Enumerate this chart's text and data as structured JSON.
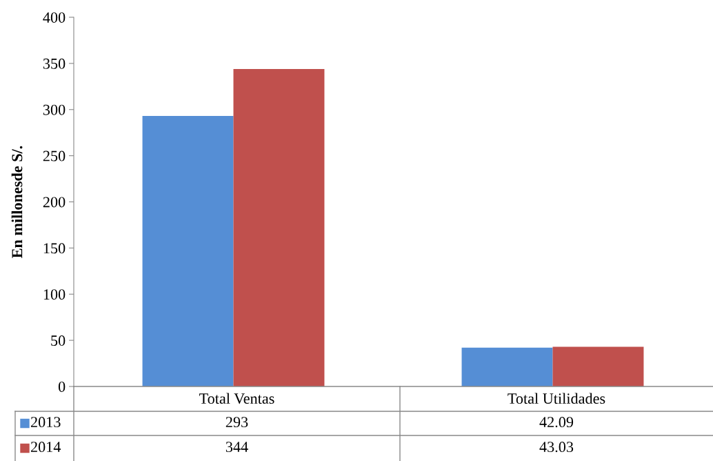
{
  "chart_data": {
    "type": "bar",
    "ylabel": "En millonesde S/.",
    "categories": [
      "Total Ventas",
      "Total Utilidades"
    ],
    "series": [
      {
        "name": "2013",
        "color": "#558ed5",
        "values": [
          293,
          42.09
        ]
      },
      {
        "name": "2014",
        "color": "#c0504d",
        "values": [
          344,
          43.03
        ]
      }
    ],
    "ylim": [
      0,
      400
    ],
    "yticks": [
      0,
      50,
      100,
      150,
      200,
      250,
      300,
      350,
      400
    ],
    "grid": false,
    "legend": "bottom",
    "data_labels": true
  }
}
